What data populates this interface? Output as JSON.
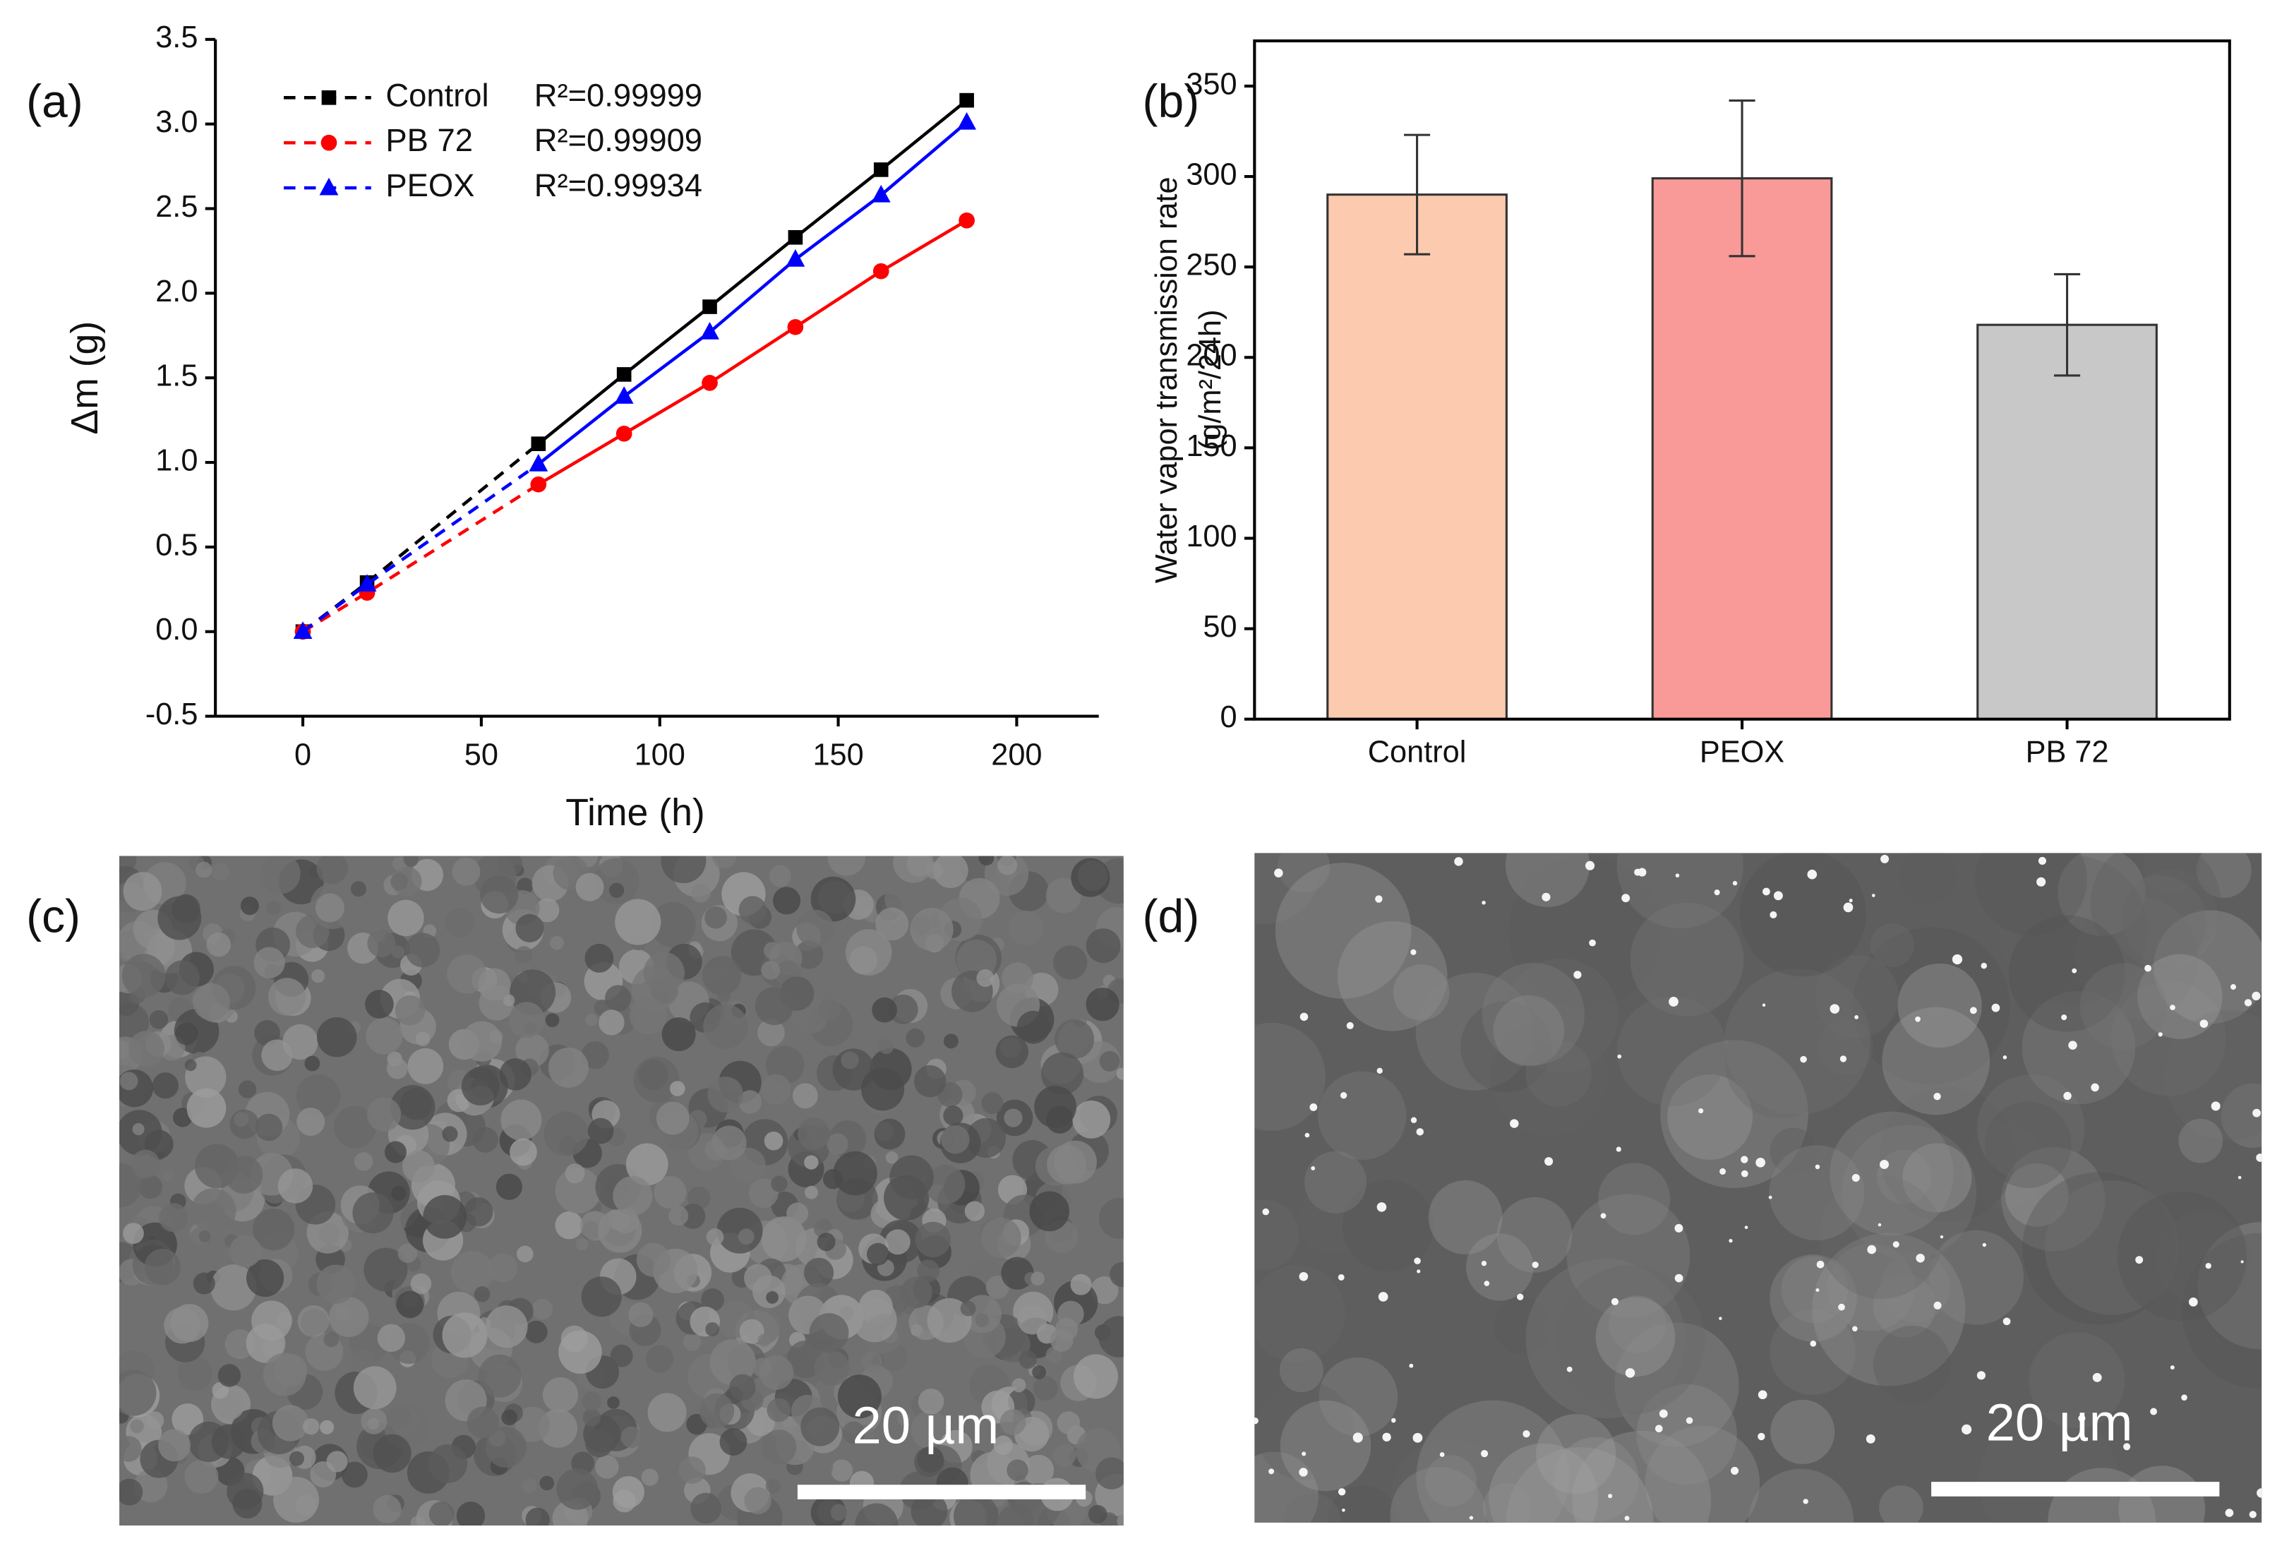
{
  "chart_data": [
    {
      "type": "line",
      "panel_label": "(a)",
      "x_label": "Time (h)",
      "y_label": "Δm (g)",
      "x": [
        0,
        18,
        66,
        90,
        114,
        138,
        162,
        186
      ],
      "series": [
        {
          "name": "Control",
          "color": "#000000",
          "marker": "square",
          "r_squared": "R²=0.99999",
          "values": [
            0,
            0.29,
            1.11,
            1.52,
            1.92,
            2.33,
            2.73,
            3.14
          ]
        },
        {
          "name": "PB 72",
          "color": "#ff0000",
          "marker": "circle",
          "r_squared": "R²=0.99909",
          "values": [
            0,
            0.23,
            0.87,
            1.17,
            1.47,
            1.8,
            2.13,
            2.43
          ]
        },
        {
          "name": "PEOX",
          "color": "#0000ff",
          "marker": "triangle",
          "r_squared": "R²=0.99934",
          "values": [
            0,
            0.28,
            0.99,
            1.39,
            1.77,
            2.2,
            2.58,
            3.01
          ]
        }
      ],
      "xlim": [
        -24.5,
        223
      ],
      "xticks": [
        0,
        50,
        100,
        150,
        200
      ],
      "ylim": [
        -0.5,
        3.5
      ],
      "yticks": [
        -0.5,
        {
          "value": 0,
          "label": "0.0"
        },
        0.5,
        {
          "value": 1,
          "label": "1.0"
        },
        1.5,
        {
          "value": 2,
          "label": "2.0"
        },
        2.5,
        {
          "value": 3,
          "label": "3.0"
        },
        3.5
      ]
    },
    {
      "type": "bar",
      "panel_label": "(b)",
      "y_label": [
        "Water vapor transmission rate",
        "(g/m²/24h)"
      ],
      "categories": [
        "Control",
        "PEOX",
        "PB 72"
      ],
      "values": [
        290,
        299,
        218
      ],
      "errors": [
        33,
        43,
        28
      ],
      "colors": [
        "#fccbaf",
        "#f99a98",
        "#c8c8c8"
      ],
      "ylim": [
        0,
        375
      ],
      "yticks": [
        0,
        50,
        100,
        150,
        200,
        250,
        300,
        350
      ]
    }
  ],
  "images": [
    {
      "panel_label": "(c)",
      "scale_bar": "20 µm"
    },
    {
      "panel_label": "(d)",
      "scale_bar": "20 µm"
    }
  ]
}
